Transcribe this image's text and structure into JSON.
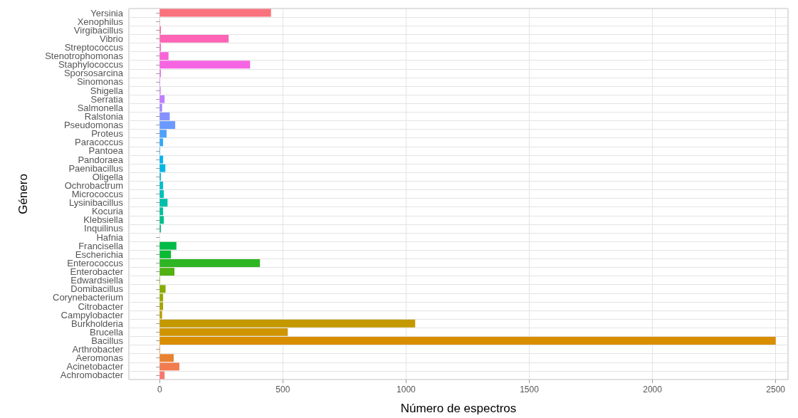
{
  "chart_data": {
    "type": "bar",
    "orientation": "horizontal",
    "xlabel": "Número de espectros",
    "ylabel": "Género",
    "categories": [
      "Yersinia",
      "Xenophilus",
      "Virgibacillus",
      "Vibrio",
      "Streptococcus",
      "Stenotrophomonas",
      "Staphylococcus",
      "Sporsosarcina",
      "Sinomonas",
      "Shigella",
      "Serratia",
      "Salmonella",
      "Ralstonia",
      "Pseudomonas",
      "Proteus",
      "Paracoccus",
      "Pantoea",
      "Pandoraea",
      "Paenibacillus",
      "Oligella",
      "Ochrobactrum",
      "Micrococcus",
      "Lysinibacillus",
      "Kocuria",
      "Klebsiella",
      "Inquilinus",
      "Hafnia",
      "Francisella",
      "Escherichia",
      "Enterococcus",
      "Enterobacter",
      "Edwardsiella",
      "Domibacillus",
      "Corynebacterium",
      "Citrobacter",
      "Campylobacter",
      "Burkholderia",
      "Brucella",
      "Bacillus",
      "Arthrobacter",
      "Aeromonas",
      "Acinetobacter",
      "Achromobacter"
    ],
    "values": [
      452,
      1,
      5,
      280,
      5,
      36,
      367,
      5,
      2,
      4,
      20,
      10,
      41,
      63,
      28,
      14,
      2,
      14,
      23,
      5,
      14,
      17,
      32,
      14,
      17,
      5,
      null,
      68,
      46,
      407,
      60,
      2,
      24,
      14,
      14,
      10,
      1037,
      520,
      2500,
      2,
      57,
      80,
      20
    ],
    "colors": [
      "#fa727d",
      "#fc6c90",
      "#fe67a6",
      "#fe64b5",
      "#fc64c5",
      "#f964d6",
      "#f564e2",
      "#ec6aec",
      "#df71f3",
      "#d177fa",
      "#bf7eff",
      "#a388ff",
      "#8691ff",
      "#6a99ff",
      "#4fa1fc",
      "#34a7f8",
      "#19aef4",
      "#00b4ef",
      "#00b7e3",
      "#00bad7",
      "#00bdca",
      "#00bfbb",
      "#00c0ab",
      "#00c09c",
      "#00c08c",
      "#00be76",
      "#00bc5e",
      "#00bb47",
      "#0cb935",
      "#2eb523",
      "#51b213",
      "#76af04",
      "#88ab00",
      "#99a700",
      "#a9a300",
      "#b99e00",
      "#c49900",
      "#cf9400",
      "#d98e00",
      "#e28812",
      "#e98230",
      "#f17c4f",
      "#f8766d"
    ],
    "xlim": [
      -125,
      2550
    ],
    "xticks": [
      0,
      500,
      1000,
      1500,
      2000,
      2500
    ],
    "grid": true
  }
}
